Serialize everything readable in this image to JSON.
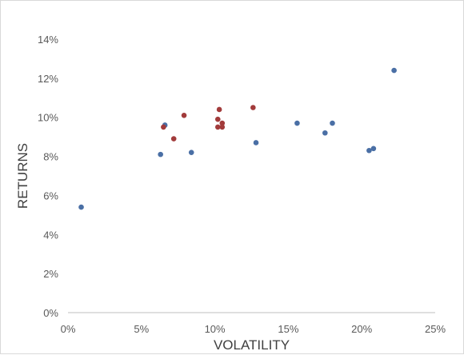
{
  "chart_data": {
    "type": "scatter",
    "title": "",
    "xlabel": "VOLATILITY",
    "ylabel": "RETURNS",
    "xlim": [
      0,
      0.25
    ],
    "ylim": [
      0,
      0.14
    ],
    "x_ticks": [
      {
        "value": 0.0,
        "label": "0%"
      },
      {
        "value": 0.05,
        "label": "5%"
      },
      {
        "value": 0.1,
        "label": "10%"
      },
      {
        "value": 0.15,
        "label": "15%"
      },
      {
        "value": 0.2,
        "label": "20%"
      },
      {
        "value": 0.25,
        "label": "25%"
      }
    ],
    "y_ticks": [
      {
        "value": 0.0,
        "label": "0%"
      },
      {
        "value": 0.02,
        "label": "2%"
      },
      {
        "value": 0.04,
        "label": "4%"
      },
      {
        "value": 0.06,
        "label": "6%"
      },
      {
        "value": 0.08,
        "label": "8%"
      },
      {
        "value": 0.1,
        "label": "10%"
      },
      {
        "value": 0.12,
        "label": "12%"
      },
      {
        "value": 0.14,
        "label": "14%"
      }
    ],
    "grid": false,
    "legend": "none",
    "series": [
      {
        "color": "#4a6fa5",
        "points": [
          {
            "x": 0.009,
            "y": 0.054
          },
          {
            "x": 0.063,
            "y": 0.081
          },
          {
            "x": 0.066,
            "y": 0.096
          },
          {
            "x": 0.084,
            "y": 0.082
          },
          {
            "x": 0.128,
            "y": 0.087
          },
          {
            "x": 0.156,
            "y": 0.097
          },
          {
            "x": 0.175,
            "y": 0.092
          },
          {
            "x": 0.18,
            "y": 0.097
          },
          {
            "x": 0.205,
            "y": 0.083
          },
          {
            "x": 0.208,
            "y": 0.084
          },
          {
            "x": 0.222,
            "y": 0.124
          }
        ]
      },
      {
        "color": "#a23b3b",
        "points": [
          {
            "x": 0.065,
            "y": 0.095
          },
          {
            "x": 0.072,
            "y": 0.089
          },
          {
            "x": 0.079,
            "y": 0.101
          },
          {
            "x": 0.102,
            "y": 0.095
          },
          {
            "x": 0.102,
            "y": 0.099
          },
          {
            "x": 0.103,
            "y": 0.104
          },
          {
            "x": 0.105,
            "y": 0.097
          },
          {
            "x": 0.105,
            "y": 0.095
          },
          {
            "x": 0.126,
            "y": 0.105
          }
        ]
      }
    ]
  }
}
